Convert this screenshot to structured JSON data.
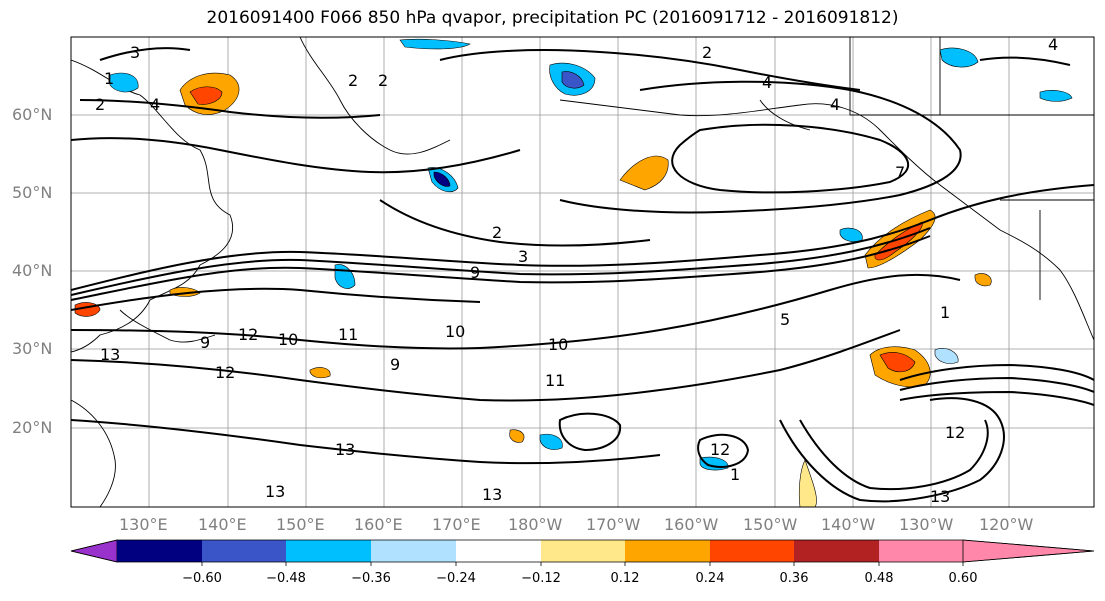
{
  "title": "2016091400 F066 850 hPa qvapor, precipitation PC (2016091712 - 2016091812)",
  "latitude_labels": [
    "60°N",
    "50°N",
    "40°N",
    "30°N",
    "20°N"
  ],
  "longitude_labels": [
    "130°E",
    "140°E",
    "150°E",
    "160°E",
    "170°E",
    "180°W",
    "170°W",
    "160°W",
    "150°W",
    "140°W",
    "130°W",
    "120°W"
  ],
  "colorbar": {
    "ticks": [
      "−0.60",
      "−0.48",
      "−0.36",
      "−0.24",
      "−0.12",
      "0.12",
      "0.24",
      "0.36",
      "0.48",
      "0.60"
    ],
    "colors": [
      "#9932cc",
      "#000080",
      "#3a55c8",
      "#00bfff",
      "#b0e2ff",
      "#ffffff",
      "#ffe88a",
      "#ffa500",
      "#ff4500",
      "#b22222",
      "#ff88aa"
    ]
  },
  "contour_labels": [
    "1",
    "1",
    "1",
    "2",
    "2",
    "2",
    "2",
    "2",
    "3",
    "3",
    "4",
    "4",
    "4",
    "4",
    "5",
    "7",
    "9",
    "9",
    "9",
    "10",
    "10",
    "10",
    "11",
    "11",
    "12",
    "12",
    "12",
    "12",
    "13",
    "13",
    "13",
    "13",
    "13"
  ]
}
